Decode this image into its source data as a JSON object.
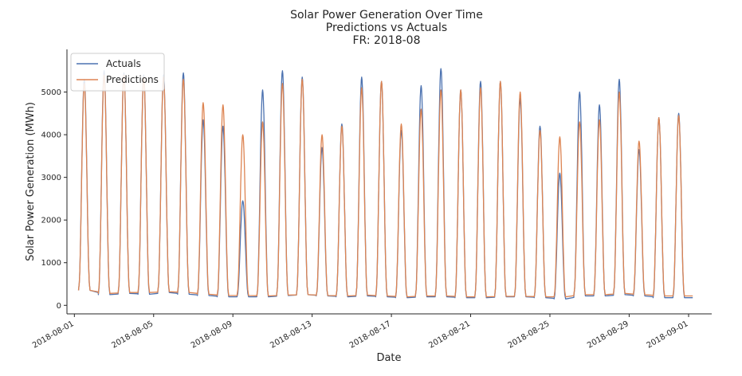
{
  "chart_data": {
    "type": "line",
    "title_lines": [
      "Solar Power Generation Over Time",
      "Predictions vs Actuals",
      "FR: 2018-08"
    ],
    "xlabel": "Date",
    "ylabel": "Solar Power Generation (MWh)",
    "x_domain": [
      "2018-07-31T15:00",
      "2018-09-02T04:00"
    ],
    "ylim": [
      -200,
      6000
    ],
    "y_ticks": [
      0,
      1000,
      2000,
      3000,
      4000,
      5000
    ],
    "x_ticks": [
      "2018-08-01",
      "2018-08-05",
      "2018-08-09",
      "2018-08-13",
      "2018-08-17",
      "2018-08-21",
      "2018-08-25",
      "2018-08-29",
      "2018-09-01"
    ],
    "x_tick_labels": [
      "2018-08-01",
      "2018-08-05",
      "2018-08-09",
      "2018-08-13",
      "2018-08-17",
      "2018-08-21",
      "2018-08-25",
      "2018-08-29",
      "2018-09-01"
    ],
    "grid": false,
    "legend_position": "upper-left",
    "series": [
      {
        "name": "Actuals",
        "color": "#4c72b0",
        "daily_peak": [
          5300,
          5500,
          5450,
          5400,
          5400,
          5450,
          4350,
          4200,
          2450,
          5050,
          5500,
          5350,
          3700,
          4250,
          5350,
          5250,
          4100,
          5150,
          5550,
          5050,
          5250,
          5250,
          4850,
          4200,
          3100,
          5000,
          4700,
          5300,
          3650,
          4400,
          4500
        ],
        "daily_night": [
          350,
          250,
          280,
          260,
          300,
          260,
          230,
          200,
          200,
          200,
          230,
          250,
          220,
          200,
          220,
          200,
          180,
          200,
          200,
          180,
          180,
          200,
          200,
          180,
          150,
          220,
          220,
          250,
          220,
          180,
          180
        ]
      },
      {
        "name": "Predictions",
        "color": "#dd8452",
        "daily_peak": [
          5200,
          5400,
          5400,
          5350,
          5350,
          5300,
          4750,
          4700,
          4000,
          4300,
          5200,
          5300,
          4000,
          4200,
          5100,
          5250,
          4250,
          4600,
          5050,
          5050,
          5100,
          5250,
          5000,
          4100,
          3950,
          4300,
          4350,
          5000,
          3850,
          4400,
          4450
        ],
        "daily_night": [
          350,
          280,
          300,
          300,
          320,
          300,
          260,
          230,
          230,
          220,
          240,
          250,
          230,
          220,
          240,
          220,
          200,
          220,
          220,
          200,
          200,
          210,
          210,
          200,
          200,
          250,
          250,
          280,
          250,
          220,
          220
        ]
      }
    ]
  }
}
